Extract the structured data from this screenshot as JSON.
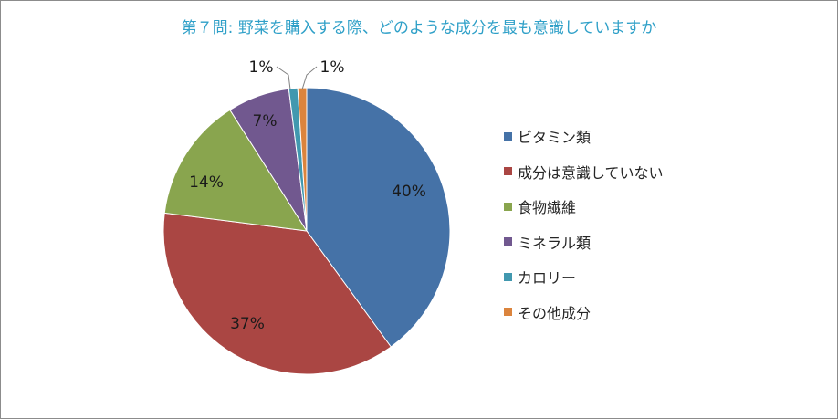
{
  "title": "第７問: 野菜を購入する際、どのような成分を最も意識していますか",
  "chart_data": {
    "type": "pie",
    "title": "第７問: 野菜を購入する際、どのような成分を最も意識していますか",
    "categories": [
      "ビタミン類",
      "成分は意識していない",
      "食物繊維",
      "ミネラル類",
      "カロリー",
      "その他成分"
    ],
    "values": [
      40,
      37,
      14,
      7,
      1,
      1
    ],
    "data_labels": [
      "40%",
      "37%",
      "14%",
      "7%",
      "1%",
      "1%"
    ],
    "colors": [
      "#4572a7",
      "#aa4643",
      "#89a54e",
      "#71588f",
      "#4198af",
      "#db843d"
    ],
    "legend_position": "right",
    "start_angle": "top, clockwise"
  }
}
